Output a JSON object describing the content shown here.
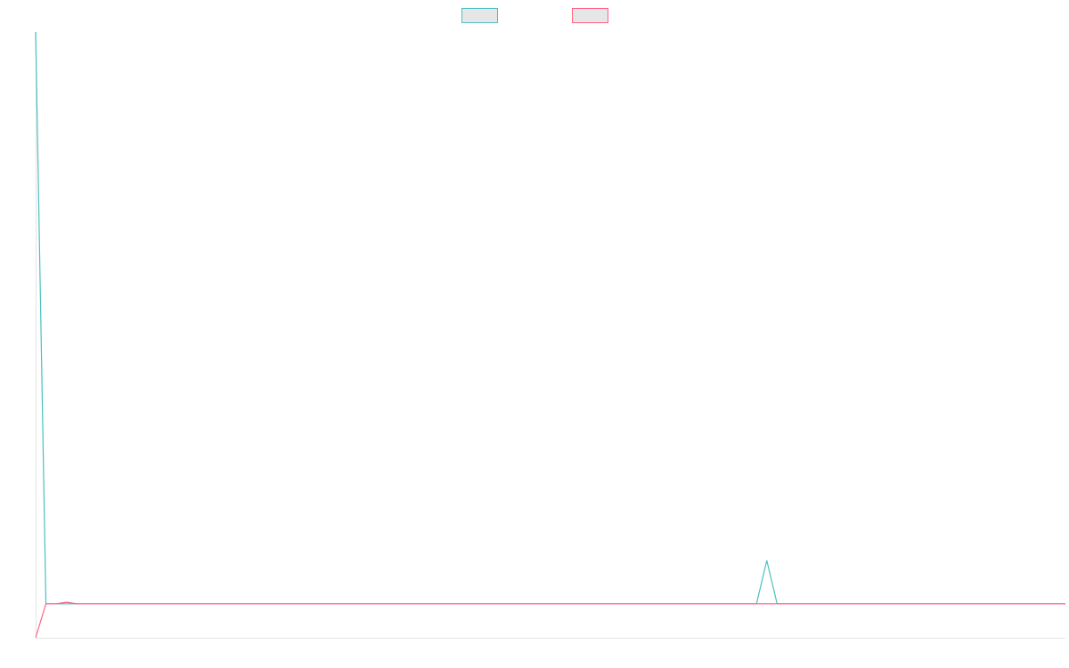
{
  "chart_data": {
    "type": "line",
    "title": "",
    "xlabel": "",
    "ylabel": "",
    "legend": {
      "placement": "top-center"
    },
    "grid": false,
    "x": [
      0,
      1,
      2,
      3,
      4,
      5,
      6,
      7,
      8,
      9,
      10,
      11,
      12,
      13,
      14,
      15,
      16,
      17,
      18,
      19,
      20,
      21,
      22,
      23,
      24,
      25,
      26,
      27,
      28,
      29,
      30,
      31,
      32,
      33,
      34,
      35,
      36,
      37,
      38,
      39,
      40,
      41,
      42,
      43,
      44,
      45,
      46,
      47,
      48,
      49,
      50,
      51,
      52,
      53,
      54,
      55,
      56,
      57,
      58,
      59,
      60,
      61,
      62,
      63,
      64,
      65,
      66,
      67,
      68,
      69,
      70,
      71,
      72,
      73,
      74,
      75,
      76,
      77,
      78,
      79,
      80,
      81,
      82,
      83,
      84,
      85,
      86,
      87,
      88,
      89,
      90,
      91,
      92,
      93,
      94,
      95,
      96,
      97,
      98,
      99,
      100
    ],
    "xlim": [
      0,
      100
    ],
    "ylim": [
      -2.2,
      37
    ],
    "series": [
      {
        "color": "#4bc0c0",
        "fill": "#e6e6e6",
        "values": [
          37,
          0,
          0,
          0,
          0,
          0,
          0,
          0,
          0,
          0,
          0,
          0,
          0,
          0,
          0,
          0,
          0,
          0,
          0,
          0,
          0,
          0,
          0,
          0,
          0,
          0,
          0,
          0,
          0,
          0,
          0,
          0,
          0,
          0,
          0,
          0,
          0,
          0,
          0,
          0,
          0,
          0,
          0,
          0,
          0,
          0,
          0,
          0,
          0,
          0,
          0,
          0,
          0,
          0,
          0,
          0,
          0,
          0,
          0,
          0,
          0,
          0,
          0,
          0,
          0,
          0,
          0,
          0,
          0,
          0,
          0,
          2.8,
          0,
          0,
          0,
          0,
          0,
          0,
          0,
          0,
          0,
          0,
          0,
          0,
          0,
          0,
          0,
          0,
          0,
          0,
          0,
          0,
          0,
          0,
          0,
          0,
          0,
          0,
          0,
          0,
          0
        ]
      },
      {
        "color": "#ff6384",
        "fill": "#e6e6e6",
        "values": [
          -2.2,
          0,
          0,
          0.1,
          0,
          0,
          0,
          0,
          0,
          0,
          0,
          0,
          0,
          0,
          0,
          0,
          0,
          0,
          0,
          0,
          0,
          0,
          0,
          0,
          0,
          0,
          0,
          0,
          0,
          0,
          0,
          0,
          0,
          0,
          0,
          0,
          0,
          0,
          0,
          0,
          0,
          0,
          0,
          0,
          0,
          0,
          0,
          0,
          0,
          0,
          0,
          0,
          0,
          0,
          0,
          0,
          0,
          0,
          0,
          0,
          0,
          0,
          0,
          0,
          0,
          0,
          0,
          0,
          0,
          0,
          0,
          0,
          0,
          0,
          0,
          0,
          0,
          0,
          0,
          0,
          0,
          0,
          0,
          0,
          0,
          0,
          0,
          0,
          0,
          0,
          0,
          0,
          0,
          0,
          0,
          0,
          0,
          0,
          0,
          0,
          0
        ]
      }
    ]
  }
}
